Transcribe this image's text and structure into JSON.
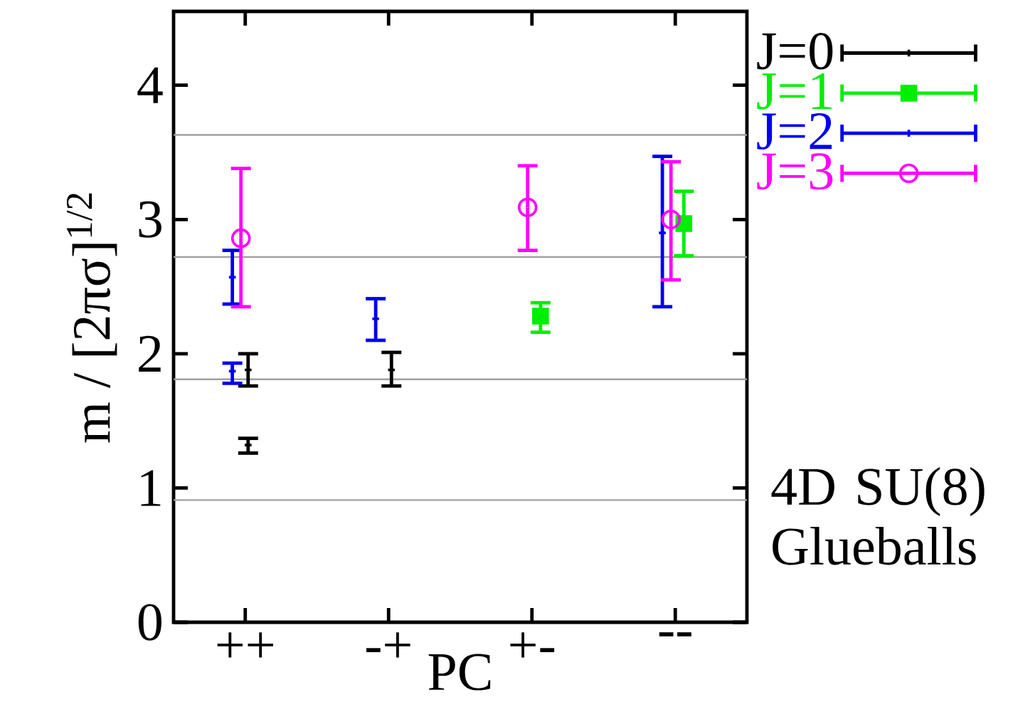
{
  "chart_data": {
    "type": "scatter",
    "xlabel": "PC",
    "ylabel": "m / [2πσ]$^{1/2}$",
    "categories": [
      "++",
      "-+",
      "+-",
      "--"
    ],
    "ylim": [
      0,
      4.55
    ],
    "yticks": [
      0,
      1,
      2,
      3,
      4
    ],
    "legend": "top right",
    "series": [
      {
        "name": "J=0",
        "color": "#000000",
        "marker": "cross",
        "values": [
          1.88,
          1.88,
          null,
          null
        ],
        "errors": [
          [
            1.76,
            2.0
          ],
          [
            1.76,
            2.01
          ],
          null,
          null
        ]
      },
      {
        "color": "#000000",
        "marker": "cross",
        "values": [
          1.32,
          null,
          null,
          null
        ],
        "errors": [
          [
            1.26,
            1.37
          ],
          null,
          null,
          null
        ]
      },
      {
        "name": "J=1",
        "color": "#00ee00",
        "marker": "square",
        "values": [
          null,
          null,
          2.28,
          2.97
        ],
        "errors": [
          null,
          null,
          [
            2.16,
            2.38
          ],
          [
            2.73,
            3.21
          ]
        ]
      },
      {
        "name": "J=2",
        "color": "#0000ee",
        "marker": "cross",
        "values": [
          2.57,
          2.26,
          null,
          2.9
        ],
        "errors": [
          [
            2.37,
            2.77
          ],
          [
            2.1,
            2.41
          ],
          null,
          [
            2.35,
            3.47
          ]
        ]
      },
      {
        "color": "#0000ee",
        "marker": "cross",
        "values": [
          1.87,
          null,
          null,
          null
        ],
        "errors": [
          [
            1.78,
            1.93
          ],
          null,
          null,
          null
        ]
      },
      {
        "name": "J=3",
        "color": "#ff00ff",
        "marker": "circle",
        "values": [
          2.86,
          null,
          3.09,
          3.0
        ],
        "errors": [
          [
            2.35,
            3.38
          ],
          null,
          [
            2.77,
            3.4
          ],
          [
            2.55,
            3.43
          ]
        ]
      }
    ],
    "ref_lines": [
      {
        "axis": "y",
        "value": 0.91,
        "color": "#a0a0a0"
      },
      {
        "axis": "y",
        "value": 1.81,
        "color": "#a0a0a0"
      },
      {
        "axis": "y",
        "value": 2.72,
        "color": "#a0a0a0"
      },
      {
        "axis": "y",
        "value": 3.63,
        "color": "#a0a0a0"
      }
    ],
    "annotations": [
      "4D SU(8) Glueballs"
    ]
  }
}
